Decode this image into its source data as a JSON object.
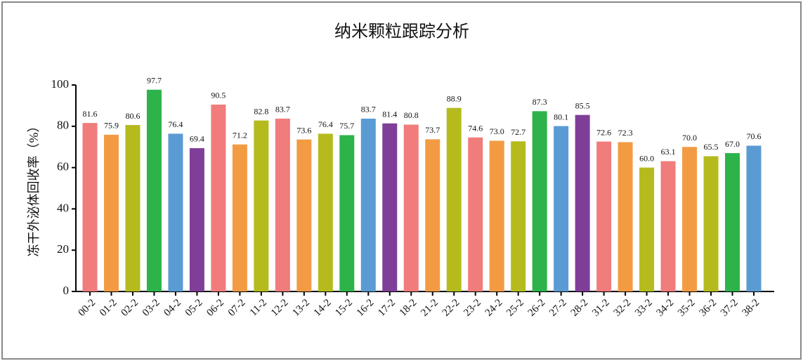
{
  "chart_data": {
    "type": "bar",
    "title": "纳米颗粒跟踪分析",
    "y_label": "冻干外泌体回收率（%）",
    "categories": [
      "00-2",
      "01-2",
      "02-2",
      "03-2",
      "04-2",
      "05-2",
      "06-2",
      "07-2",
      "11-2",
      "12-2",
      "13-2",
      "14-2",
      "15-2",
      "16-2",
      "17-2",
      "18-2",
      "21-2",
      "22-2",
      "23-2",
      "24-2",
      "25-2",
      "26-2",
      "27-2",
      "28-2",
      "31-2",
      "32-2",
      "33-2",
      "34-2",
      "35-2",
      "36-2",
      "37-2",
      "38-2"
    ],
    "values": [
      81.6,
      75.9,
      80.6,
      97.7,
      76.4,
      69.4,
      90.5,
      71.2,
      82.8,
      83.7,
      73.6,
      76.4,
      75.7,
      83.7,
      81.4,
      80.8,
      73.7,
      88.9,
      74.6,
      73.0,
      72.7,
      87.3,
      80.1,
      85.5,
      72.6,
      72.3,
      60.0,
      63.1,
      70.0,
      65.5,
      67.0,
      70.6
    ],
    "value_labels": [
      "81.6",
      "75.9",
      "80.6",
      "97.7",
      "76.4",
      "69.4",
      "90.5",
      "71.2",
      "82.8",
      "83.7",
      "73.6",
      "76.4",
      "75.7",
      "83.7",
      "81.4",
      "80.8",
      "73.7",
      "88.9",
      "74.6",
      "73.0",
      "72.7",
      "87.3",
      "80.1",
      "85.5",
      "72.6",
      "72.3",
      "60.0",
      "63.1",
      "70.0",
      "65.5",
      "67.0",
      "70.6"
    ],
    "colors": [
      "#f07c7c",
      "#f39b43",
      "#b5bb1d",
      "#2db34a",
      "#5a9bd4",
      "#7f3f98",
      "#f07c7c",
      "#f39b43",
      "#b5bb1d",
      "#f07c7c",
      "#f39b43",
      "#b5bb1d",
      "#2db34a",
      "#5a9bd4",
      "#7f3f98",
      "#f07c7c",
      "#f39b43",
      "#b5bb1d",
      "#f07c7c",
      "#f39b43",
      "#b5bb1d",
      "#2db34a",
      "#5a9bd4",
      "#7f3f98",
      "#f07c7c",
      "#f39b43",
      "#b5bb1d",
      "#f07c7c",
      "#f39b43",
      "#b5bb1d",
      "#2db34a",
      "#5a9bd4"
    ],
    "ylim": [
      0,
      100
    ],
    "yticks": [
      0,
      20,
      40,
      60,
      80,
      100
    ]
  }
}
